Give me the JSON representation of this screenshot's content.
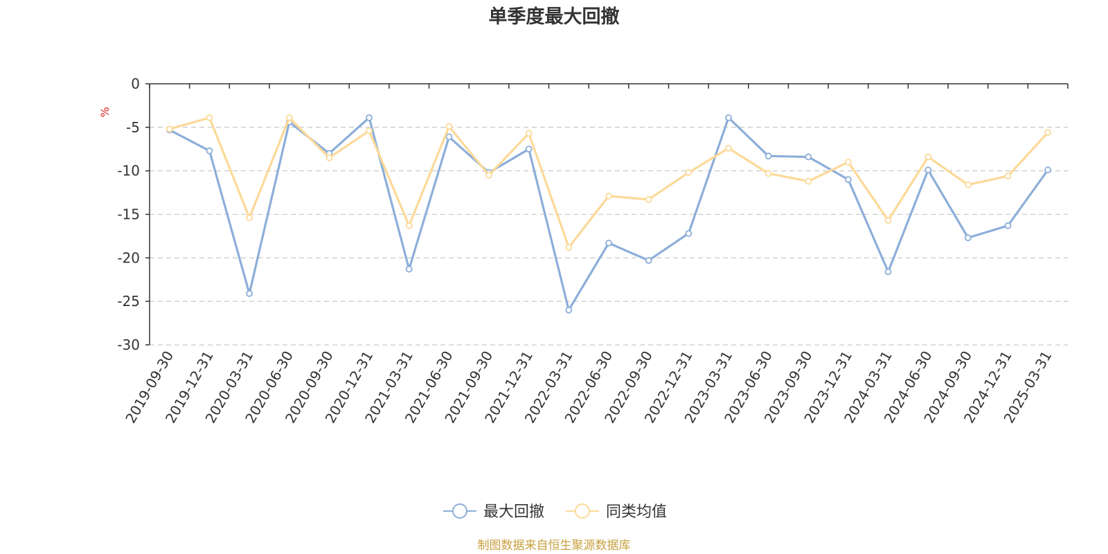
{
  "chart_data": {
    "type": "line",
    "title": "单季度最大回撤",
    "ylabel": "%",
    "ylim": [
      -30,
      0
    ],
    "yticks": [
      0,
      -5,
      -10,
      -15,
      -20,
      -25,
      -30
    ],
    "grid": true,
    "legend_position": "bottom",
    "categories": [
      "2019-09-30",
      "2019-12-31",
      "2020-03-31",
      "2020-06-30",
      "2020-09-30",
      "2020-12-31",
      "2021-03-31",
      "2021-06-30",
      "2021-09-30",
      "2021-12-31",
      "2022-03-31",
      "2022-06-30",
      "2022-09-30",
      "2022-12-31",
      "2023-03-31",
      "2023-06-30",
      "2023-09-30",
      "2023-12-31",
      "2024-03-31",
      "2024-06-30",
      "2024-09-30",
      "2024-12-31",
      "2025-03-31"
    ],
    "series": [
      {
        "name": "最大回撤",
        "color": "#8caed9",
        "values": [
          -5.3,
          -7.7,
          -24.1,
          -4.4,
          -8.0,
          -3.9,
          -21.3,
          -6.1,
          -10.2,
          -7.5,
          -26.0,
          -18.3,
          -20.3,
          -17.2,
          -3.9,
          -8.3,
          -8.4,
          -11.0,
          -21.6,
          -9.9,
          -17.7,
          -16.3,
          -9.9
        ]
      },
      {
        "name": "同类均值",
        "color": "#fcd998",
        "values": [
          -5.2,
          -3.9,
          -15.4,
          -3.9,
          -8.5,
          -5.4,
          -16.3,
          -4.9,
          -10.5,
          -5.7,
          -18.8,
          -12.9,
          -13.3,
          -10.2,
          -7.4,
          -10.3,
          -11.2,
          -9.0,
          -15.7,
          -8.4,
          -11.6,
          -10.6,
          -5.6
        ]
      }
    ]
  },
  "colors": {
    "axis": "#333333",
    "grid": "#cccccc",
    "unit": "#e02020",
    "source": "#c8a040"
  },
  "source_text": "制图数据来自恒生聚源数据库"
}
